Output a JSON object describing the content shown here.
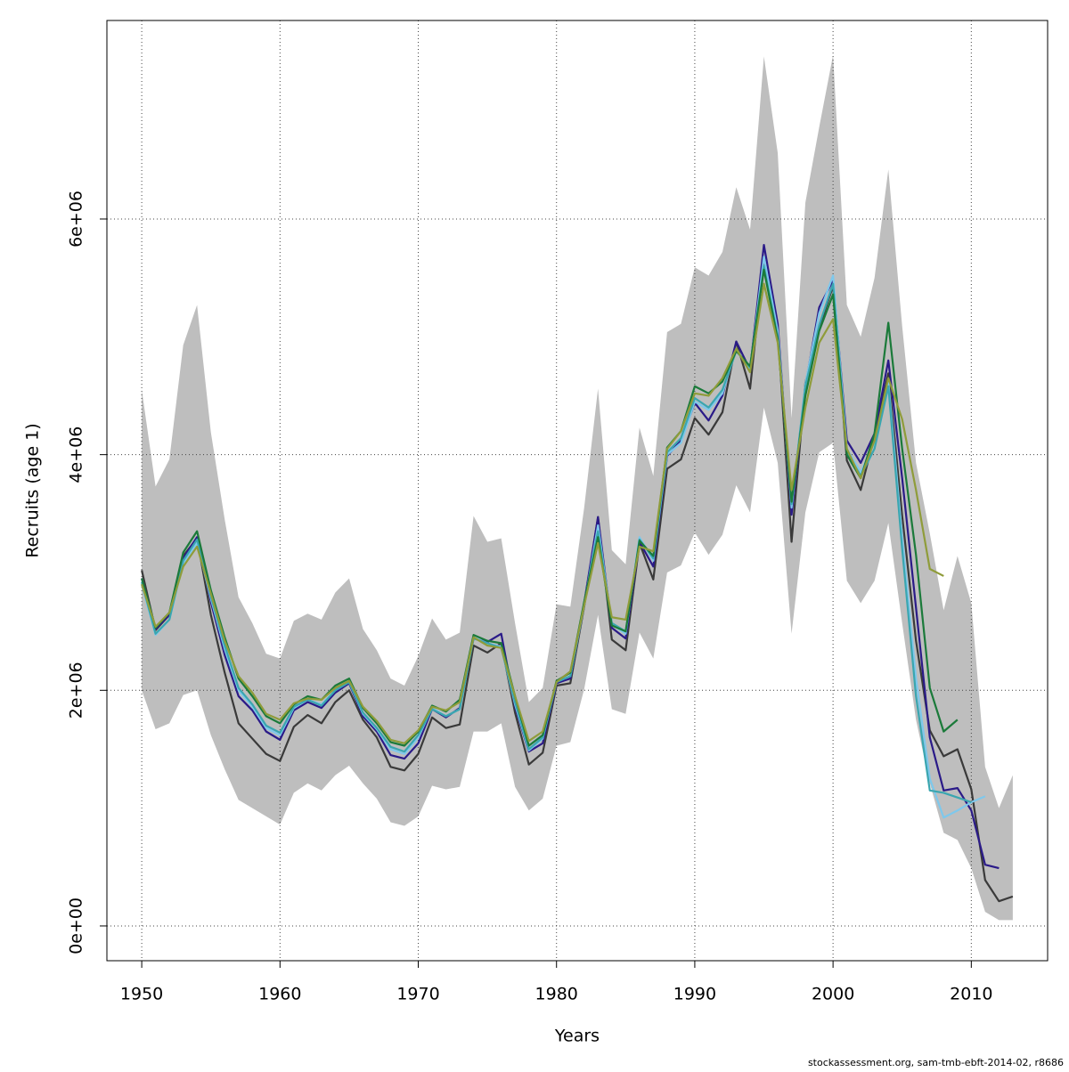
{
  "chart_data": {
    "type": "line",
    "x_label": "Years",
    "y_label": "Recruits (age 1)",
    "footer": "stockassessment.org, sam-tmb-ebft-2014-02, r8686",
    "xlim": [
      1947.48,
      2015.52
    ],
    "ylim": [
      -295000,
      7685000
    ],
    "xticks": [
      1950,
      1960,
      1970,
      1980,
      1990,
      2000,
      2010
    ],
    "yticks": [
      {
        "value": 0,
        "label": "0e+00"
      },
      {
        "value": 2000000,
        "label": "2e+06"
      },
      {
        "value": 4000000,
        "label": "4e+06"
      },
      {
        "value": 6000000,
        "label": "6e+06"
      }
    ],
    "grid": true,
    "x": [
      1950,
      1951,
      1952,
      1953,
      1954,
      1955,
      1956,
      1957,
      1958,
      1959,
      1960,
      1961,
      1962,
      1963,
      1964,
      1965,
      1966,
      1967,
      1968,
      1969,
      1970,
      1971,
      1972,
      1973,
      1974,
      1975,
      1976,
      1977,
      1978,
      1979,
      1980,
      1981,
      1982,
      1983,
      1984,
      1985,
      1986,
      1987,
      1988,
      1989,
      1990,
      1991,
      1992,
      1993,
      1994,
      1995,
      1996,
      1997,
      1998,
      1999,
      2000,
      2001,
      2002,
      2003,
      2004,
      2005,
      2006,
      2007,
      2008,
      2009,
      2010,
      2011,
      2012,
      2013
    ],
    "band": {
      "color": "#bebebe",
      "upper": [
        4550000.0,
        3730000.0,
        3960000.0,
        4930000.0,
        5270000.0,
        4190000.0,
        3450000.0,
        2790000.0,
        2570000.0,
        2310000.0,
        2270000.0,
        2590000.0,
        2650000.0,
        2600000.0,
        2830000.0,
        2950000.0,
        2520000.0,
        2340000.0,
        2100000.0,
        2040000.0,
        2290000.0,
        2610000.0,
        2430000.0,
        2490000.0,
        3480000.0,
        3260000.0,
        3290000.0,
        2570000.0,
        1900000.0,
        2020000.0,
        2730000.0,
        2710000.0,
        3550000.0,
        4560000.0,
        3190000.0,
        3070000.0,
        4230000.0,
        3820000.0,
        5040000.0,
        5110000.0,
        5590000.0,
        5520000.0,
        5720000.0,
        6270000.0,
        5910000.0,
        7380000.0,
        6560000.0,
        4310000.0,
        6140000.0,
        6780000.0,
        7390000.0,
        5270000.0,
        5000000.0,
        5500000.0,
        6420000.0,
        5090000.0,
        3930000.0,
        3330000.0,
        2680000.0,
        3140000.0,
        2740000.0,
        1350000.0,
        1000000.0,
        1280000.0
      ],
      "lower": [
        2000000.0,
        1670000.0,
        1720000.0,
        1960000.0,
        2000000.0,
        1620000.0,
        1330000.0,
        1070000.0,
        1000000.0,
        930000.0,
        860000.0,
        1130000.0,
        1210000.0,
        1150000.0,
        1280000.0,
        1360000.0,
        1210000.0,
        1080000.0,
        880000.0,
        850000.0,
        930000.0,
        1190000.0,
        1160000.0,
        1180000.0,
        1650000.0,
        1650000.0,
        1720000.0,
        1180000.0,
        980000.0,
        1080000.0,
        1530000.0,
        1560000.0,
        2010000.0,
        2640000.0,
        1840000.0,
        1800000.0,
        2490000.0,
        2270000.0,
        3000000.0,
        3060000.0,
        3340000.0,
        3150000.0,
        3320000.0,
        3740000.0,
        3510000.0,
        4400000.0,
        3930000.0,
        2480000.0,
        3510000.0,
        4020000.0,
        4100000.0,
        2930000.0,
        2740000.0,
        2930000.0,
        3420000.0,
        2570000.0,
        1750000.0,
        1210000.0,
        790000.0,
        730000.0,
        490000.0,
        120000.0,
        50000.0,
        50000.0
      ]
    },
    "series": [
      {
        "color": "#3a3a3a",
        "values": [
          3020000.0,
          2510000.0,
          2640000.0,
          3140000.0,
          3290000.0,
          2640000.0,
          2150000.0,
          1720000.0,
          1590000.0,
          1460000.0,
          1400000.0,
          1690000.0,
          1790000.0,
          1720000.0,
          1900000.0,
          2000000.0,
          1750000.0,
          1600000.0,
          1350000.0,
          1320000.0,
          1460000.0,
          1770000.0,
          1680000.0,
          1710000.0,
          2380000.0,
          2320000.0,
          2400000.0,
          1810000.0,
          1370000.0,
          1470000.0,
          2040000.0,
          2060000.0,
          2710000.0,
          3470000.0,
          2430000.0,
          2340000.0,
          3250000.0,
          2940000.0,
          3880000.0,
          3960000.0,
          4310000.0,
          4170000.0,
          4360000.0,
          4960000.0,
          4560000.0,
          5670000.0,
          5060000.0,
          3260000.0,
          4610000.0,
          5080000.0,
          5430000.0,
          3950000.0,
          3700000.0,
          4160000.0,
          4690000.0,
          3480000.0,
          2420000.0,
          1660000.0,
          1440000.0,
          1500000.0,
          1160000.0,
          390000.0,
          210000.0,
          250000.0
        ]
      },
      {
        "color": "#2a1a88",
        "values": [
          2950000.0,
          2520000.0,
          2640000.0,
          3120000.0,
          3300000.0,
          2750000.0,
          2300000.0,
          1950000.0,
          1830000.0,
          1650000.0,
          1580000.0,
          1830000.0,
          1900000.0,
          1850000.0,
          1980000.0,
          2060000.0,
          1780000.0,
          1650000.0,
          1450000.0,
          1420000.0,
          1550000.0,
          1840000.0,
          1770000.0,
          1850000.0,
          2440000.0,
          2410000.0,
          2480000.0,
          1860000.0,
          1480000.0,
          1550000.0,
          2060000.0,
          2100000.0,
          2740000.0,
          3470000.0,
          2530000.0,
          2440000.0,
          3260000.0,
          3050000.0,
          3990000.0,
          4120000.0,
          4440000.0,
          4290000.0,
          4500000.0,
          4960000.0,
          4720000.0,
          5780000.0,
          5110000.0,
          3490000.0,
          4580000.0,
          5250000.0,
          5480000.0,
          4120000.0,
          3930000.0,
          4180000.0,
          4800000.0,
          3800000.0,
          2700000.0,
          1600000.0,
          1150000.0,
          1170000.0,
          980000.0,
          520000.0,
          490000.0,
          null
        ]
      },
      {
        "color": "#7ec8ec",
        "values": [
          2900000.0,
          2470000.0,
          2600000.0,
          3080000.0,
          3250000.0,
          2780000.0,
          2350000.0,
          2000000.0,
          1860000.0,
          1680000.0,
          1620000.0,
          1850000.0,
          1920000.0,
          1880000.0,
          2000000.0,
          2070000.0,
          1800000.0,
          1670000.0,
          1500000.0,
          1460000.0,
          1600000.0,
          1850000.0,
          1780000.0,
          1840000.0,
          2450000.0,
          2400000.0,
          2370000.0,
          1880000.0,
          1490000.0,
          1590000.0,
          2070000.0,
          2120000.0,
          2720000.0,
          3400000.0,
          2560000.0,
          2480000.0,
          3300000.0,
          3100000.0,
          4000000.0,
          4100000.0,
          4450000.0,
          4380000.0,
          4520000.0,
          4900000.0,
          4720000.0,
          5680000.0,
          5050000.0,
          3550000.0,
          4600000.0,
          5200000.0,
          5520000.0,
          4050000.0,
          3850000.0,
          4100000.0,
          4620000.0,
          3300000.0,
          2100000.0,
          1250000.0,
          920000.0,
          980000.0,
          1050000.0,
          1100000.0,
          null,
          null
        ]
      },
      {
        "color": "#3aa6b0",
        "values": [
          2920000.0,
          2480000.0,
          2600000.0,
          3100000.0,
          3280000.0,
          2800000.0,
          2380000.0,
          2020000.0,
          1880000.0,
          1700000.0,
          1640000.0,
          1860000.0,
          1920000.0,
          1870000.0,
          2000000.0,
          2070000.0,
          1810000.0,
          1680000.0,
          1520000.0,
          1480000.0,
          1620000.0,
          1840000.0,
          1780000.0,
          1840000.0,
          2440000.0,
          2400000.0,
          2360000.0,
          1900000.0,
          1500000.0,
          1600000.0,
          2070000.0,
          2120000.0,
          2740000.0,
          3350000.0,
          2570000.0,
          2500000.0,
          3280000.0,
          3120000.0,
          4020000.0,
          4140000.0,
          4480000.0,
          4400000.0,
          4550000.0,
          4880000.0,
          4740000.0,
          5600000.0,
          5000000.0,
          3580000.0,
          4580000.0,
          5100000.0,
          5450000.0,
          4020000.0,
          3820000.0,
          4050000.0,
          4580000.0,
          3200000.0,
          1950000.0,
          1150000.0,
          1130000.0,
          1090000.0,
          1050000.0,
          null,
          null,
          null
        ]
      },
      {
        "color": "#1b7a3a",
        "values": [
          2950000.0,
          2530000.0,
          2660000.0,
          3170000.0,
          3350000.0,
          2850000.0,
          2450000.0,
          2100000.0,
          1950000.0,
          1780000.0,
          1720000.0,
          1880000.0,
          1950000.0,
          1920000.0,
          2040000.0,
          2100000.0,
          1850000.0,
          1720000.0,
          1560000.0,
          1530000.0,
          1650000.0,
          1870000.0,
          1820000.0,
          1920000.0,
          2470000.0,
          2420000.0,
          2400000.0,
          1950000.0,
          1530000.0,
          1620000.0,
          2080000.0,
          2150000.0,
          2750000.0,
          3300000.0,
          2550000.0,
          2500000.0,
          3270000.0,
          3140000.0,
          4060000.0,
          4200000.0,
          4580000.0,
          4520000.0,
          4620000.0,
          4880000.0,
          4750000.0,
          5570000.0,
          4980000.0,
          3600000.0,
          4500000.0,
          5050000.0,
          5360000.0,
          4000000.0,
          3800000.0,
          4180000.0,
          5120000.0,
          4050000.0,
          3150000.0,
          2020000.0,
          1650000.0,
          1750000.0,
          null,
          null,
          null,
          null
        ]
      },
      {
        "color": "#8f9c3a",
        "values": [
          2900000.0,
          2540000.0,
          2660000.0,
          3050000.0,
          3220000.0,
          2820000.0,
          2420000.0,
          2120000.0,
          1980000.0,
          1800000.0,
          1750000.0,
          1890000.0,
          1930000.0,
          1920000.0,
          2020000.0,
          2080000.0,
          1860000.0,
          1740000.0,
          1580000.0,
          1550000.0,
          1660000.0,
          1860000.0,
          1830000.0,
          1900000.0,
          2450000.0,
          2380000.0,
          2360000.0,
          1950000.0,
          1570000.0,
          1650000.0,
          2070000.0,
          2160000.0,
          2720000.0,
          3250000.0,
          2620000.0,
          2600000.0,
          3220000.0,
          3180000.0,
          4050000.0,
          4200000.0,
          4520000.0,
          4500000.0,
          4650000.0,
          4900000.0,
          4700000.0,
          5450000.0,
          4950000.0,
          3700000.0,
          4400000.0,
          4950000.0,
          5150000.0,
          4050000.0,
          3800000.0,
          4120000.0,
          4650000.0,
          4300000.0,
          3700000.0,
          3030000.0,
          2970000.0,
          null,
          null,
          null,
          null,
          null
        ]
      }
    ]
  }
}
